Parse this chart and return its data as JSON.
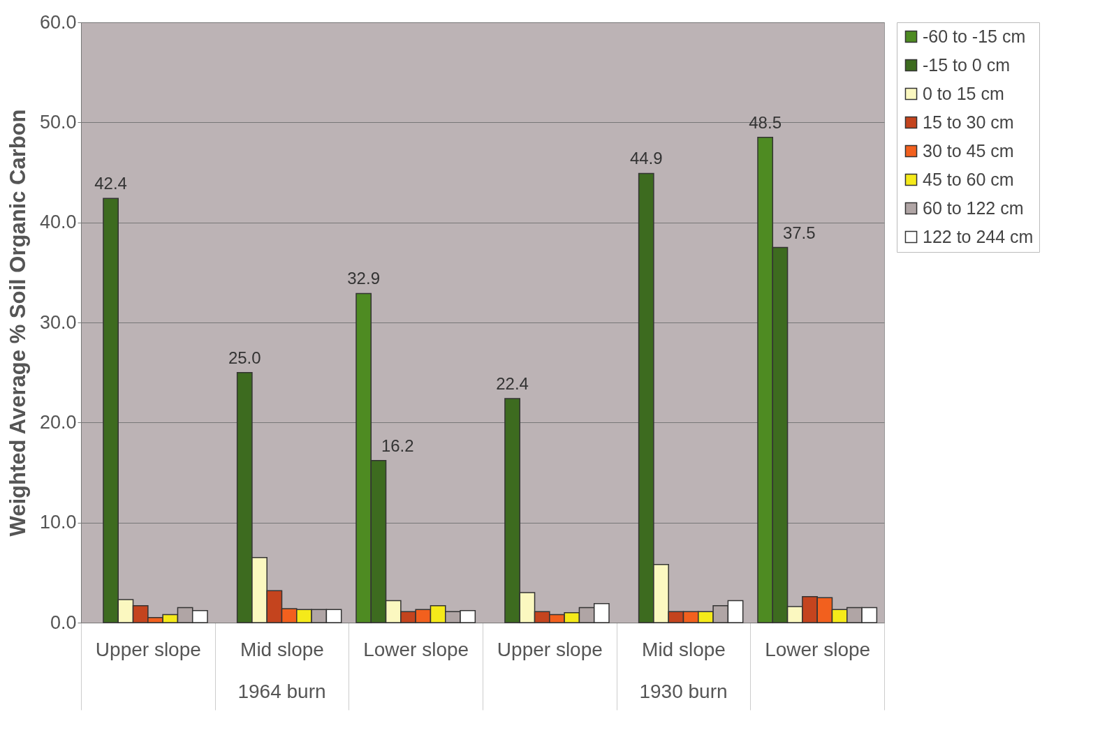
{
  "chart_data": {
    "type": "bar",
    "ylabel": "Weighted Average % Soil Organic Carbon",
    "categories": [
      "Upper slope",
      "Mid slope",
      "Lower slope",
      "Upper slope",
      "Mid slope",
      "Lower slope"
    ],
    "annotations": [
      "1964 burn",
      "1930 burn"
    ],
    "series": [
      {
        "name": "-60 to -15 cm",
        "color": "#4e8b22",
        "values": [
          null,
          null,
          32.9,
          null,
          null,
          48.5
        ],
        "value_labels": [
          null,
          null,
          "32.9",
          null,
          null,
          "48.5"
        ]
      },
      {
        "name": "-15 to 0 cm",
        "color": "#3d6b1f",
        "values": [
          42.4,
          25.0,
          16.2,
          22.4,
          44.9,
          37.5
        ],
        "value_labels": [
          "42.4",
          "25.0",
          "16.2",
          "22.4",
          "44.9",
          "37.5"
        ]
      },
      {
        "name": "0 to 15 cm",
        "color": "#fbf8c0",
        "values": [
          2.3,
          6.5,
          2.2,
          3.0,
          5.8,
          1.6
        ]
      },
      {
        "name": "15 to 30 cm",
        "color": "#c4441e",
        "values": [
          1.7,
          3.2,
          1.1,
          1.1,
          1.1,
          2.6
        ]
      },
      {
        "name": "30 to 45 cm",
        "color": "#f2601e",
        "values": [
          0.5,
          1.4,
          1.3,
          0.8,
          1.1,
          2.5
        ]
      },
      {
        "name": "45 to 60 cm",
        "color": "#f5ea1a",
        "values": [
          0.8,
          1.3,
          1.7,
          1.0,
          1.1,
          1.3
        ]
      },
      {
        "name": "60 to 122 cm",
        "color": "#b0a5a5",
        "values": [
          1.5,
          1.3,
          1.1,
          1.5,
          1.7,
          1.5
        ]
      },
      {
        "name": "122 to 244 cm",
        "color": "#ffffff",
        "values": [
          1.2,
          1.3,
          1.2,
          1.9,
          2.2,
          1.5
        ]
      }
    ],
    "ylim": [
      0,
      60
    ],
    "yticks": [
      {
        "value": 0,
        "label": "0.0"
      },
      {
        "value": 10,
        "label": "10.0"
      },
      {
        "value": 20,
        "label": "20.0"
      },
      {
        "value": 30,
        "label": "30.0"
      },
      {
        "value": 40,
        "label": "40.0"
      },
      {
        "value": 50,
        "label": "50.0"
      },
      {
        "value": 60,
        "label": "60.0"
      }
    ],
    "grid": "y",
    "legend": "right"
  }
}
